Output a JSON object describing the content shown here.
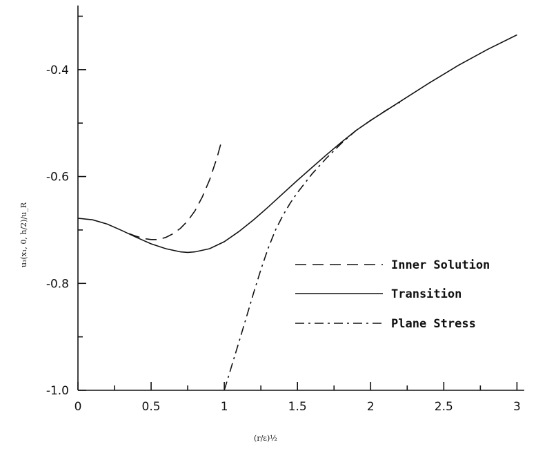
{
  "chart_data": {
    "type": "line",
    "title": "",
    "xlabel": "(r/ε)½",
    "ylabel": "u₃(x₁, 0, h/2)/u_R",
    "xlim": [
      0,
      3.05
    ],
    "ylim": [
      -1.0,
      -0.28
    ],
    "x_ticks": [
      0,
      0.5,
      1,
      1.5,
      2,
      2.5,
      3
    ],
    "x_tick_labels": [
      "0",
      "0.5",
      "1",
      "1.5",
      "2",
      "2.5",
      "3"
    ],
    "x_minor_ticks": [
      0.25,
      0.75,
      1.25,
      1.75,
      2.25,
      2.75
    ],
    "y_ticks": [
      -1.0,
      -0.8,
      -0.6,
      -0.4
    ],
    "y_tick_labels": [
      "-1.0",
      "-0.8",
      "-0.6",
      "-0.4"
    ],
    "y_minor_ticks": [
      -0.9,
      -0.7,
      -0.5,
      -0.3
    ],
    "grid": false,
    "legend_position": "center-right",
    "series": [
      {
        "name": "Inner Solution",
        "style": "dashed",
        "x": [
          0.35,
          0.4,
          0.45,
          0.5,
          0.55,
          0.6,
          0.65,
          0.7,
          0.75,
          0.8,
          0.85,
          0.9,
          0.95,
          0.98
        ],
        "y": [
          -0.707,
          -0.712,
          -0.716,
          -0.718,
          -0.718,
          -0.714,
          -0.707,
          -0.697,
          -0.683,
          -0.664,
          -0.638,
          -0.606,
          -0.565,
          -0.535
        ]
      },
      {
        "name": "Transition",
        "style": "solid",
        "x": [
          0,
          0.1,
          0.2,
          0.3,
          0.4,
          0.5,
          0.6,
          0.7,
          0.75,
          0.8,
          0.9,
          1.0,
          1.1,
          1.2,
          1.3,
          1.4,
          1.5,
          1.6,
          1.7,
          1.8,
          1.9,
          2.0,
          2.2,
          2.4,
          2.6,
          2.8,
          3.0
        ],
        "y": [
          -0.678,
          -0.681,
          -0.689,
          -0.701,
          -0.714,
          -0.726,
          -0.735,
          -0.741,
          -0.742,
          -0.741,
          -0.735,
          -0.722,
          -0.703,
          -0.681,
          -0.657,
          -0.632,
          -0.607,
          -0.583,
          -0.559,
          -0.536,
          -0.514,
          -0.495,
          -0.46,
          -0.425,
          -0.392,
          -0.362,
          -0.335
        ]
      },
      {
        "name": "Plane Stress",
        "style": "dashdot",
        "x": [
          1.0,
          1.05,
          1.1,
          1.15,
          1.2,
          1.25,
          1.3,
          1.35,
          1.4,
          1.45,
          1.5,
          1.6,
          1.7,
          1.8,
          1.9,
          2.0,
          2.1,
          2.2
        ],
        "y": [
          -1.0,
          -0.955,
          -0.91,
          -0.864,
          -0.818,
          -0.774,
          -0.734,
          -0.7,
          -0.673,
          -0.65,
          -0.63,
          -0.595,
          -0.565,
          -0.538,
          -0.514,
          -0.495,
          -0.477,
          -0.461
        ]
      }
    ]
  }
}
